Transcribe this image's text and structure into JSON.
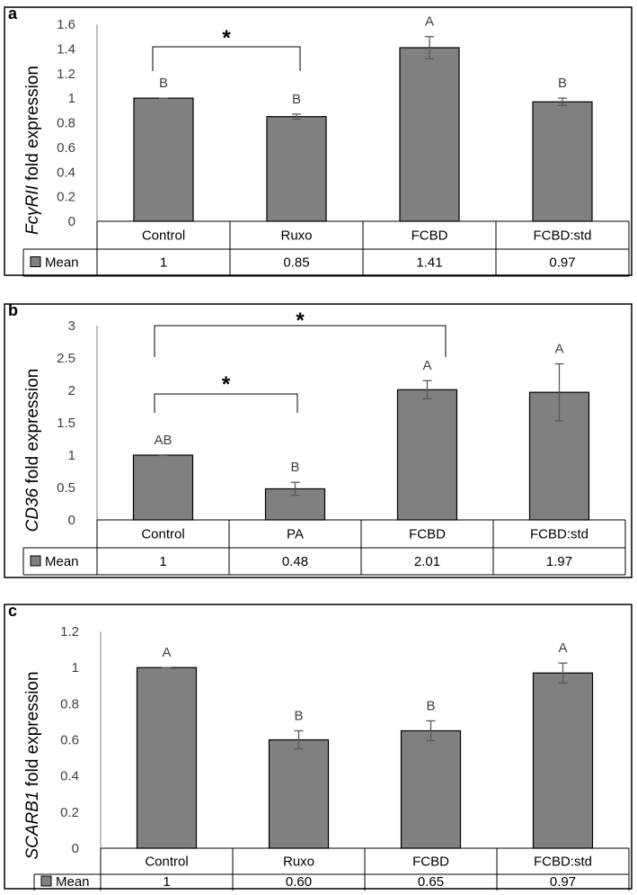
{
  "chart_data": [
    {
      "type": "bar",
      "panel_label": "a",
      "title": "",
      "ylabel_italic": "FcγRII",
      "ylabel_rest": " fold expression",
      "categories": [
        "Control",
        "Ruxo",
        "FCBD",
        "FCBD:std"
      ],
      "series": [
        {
          "name": "Mean",
          "values": [
            1,
            0.85,
            1.41,
            0.97
          ]
        }
      ],
      "error": [
        0,
        0.02,
        0.09,
        0.03
      ],
      "letters": [
        "B",
        "B",
        "A",
        "B"
      ],
      "table_values": [
        "1",
        "0.85",
        "1.41",
        "0.97"
      ],
      "ylim": [
        0,
        1.6
      ],
      "yticks": [
        "0",
        "0.2",
        "0.4",
        "0.6",
        "0.8",
        "1",
        "1.2",
        "1.4",
        "1.6"
      ],
      "significance": [
        {
          "from": 0,
          "to": 1,
          "label": "*"
        }
      ],
      "legend_label": "Mean",
      "bar_color": "#808080"
    },
    {
      "type": "bar",
      "panel_label": "b",
      "title": "",
      "ylabel_italic": "CD36",
      "ylabel_rest": " fold expression",
      "categories": [
        "Control",
        "PA",
        "FCBD",
        "FCBD:std"
      ],
      "series": [
        {
          "name": "Mean",
          "values": [
            1,
            0.48,
            2.01,
            1.97
          ]
        }
      ],
      "error": [
        0,
        0.1,
        0.14,
        0.44
      ],
      "letters": [
        "AB",
        "B",
        "A",
        "A"
      ],
      "table_values": [
        "1",
        "0.48",
        "2.01",
        "1.97"
      ],
      "ylim": [
        0,
        3
      ],
      "yticks": [
        "0",
        "0.5",
        "1",
        "1.5",
        "2",
        "2.5",
        "3"
      ],
      "significance": [
        {
          "from": 0,
          "to": 2,
          "label": "*"
        },
        {
          "from": 0,
          "to": 1,
          "label": "*"
        }
      ],
      "legend_label": "Mean",
      "bar_color": "#808080"
    },
    {
      "type": "bar",
      "panel_label": "c",
      "title": "",
      "ylabel_italic": "SCARB1",
      "ylabel_rest": " fold expression",
      "categories": [
        "Control",
        "Ruxo",
        "FCBD",
        "FCBD:std"
      ],
      "series": [
        {
          "name": "Mean",
          "values": [
            1,
            0.6,
            0.65,
            0.97
          ]
        }
      ],
      "error": [
        0,
        0.05,
        0.055,
        0.055
      ],
      "letters": [
        "A",
        "B",
        "B",
        "A"
      ],
      "table_values": [
        "1",
        "0.60",
        "0.65",
        "0.97"
      ],
      "ylim": [
        0,
        1.2
      ],
      "yticks": [
        "0",
        "0.2",
        "0.4",
        "0.6",
        "0.8",
        "1",
        "1.2"
      ],
      "significance": [],
      "legend_label": "Mean",
      "bar_color": "#808080"
    }
  ]
}
